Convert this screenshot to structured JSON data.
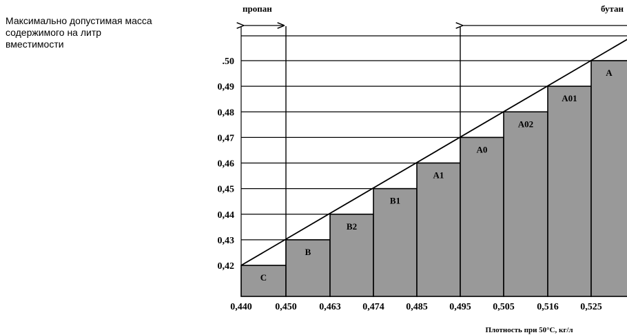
{
  "chart_data": {
    "type": "bar",
    "ylabel_lines": [
      "Максимально допустимая масса",
      "содержимого на литр",
      "вместимости"
    ],
    "xlabel": "Плотность при 50°С, кг/л",
    "x_tick_labels": [
      "0,440",
      "0,450",
      "0,463",
      "0,474",
      "0,485",
      "0,495",
      "0,505",
      "0,516",
      "0,525"
    ],
    "y_tick_labels": [
      ".50",
      "0,49",
      "0,48",
      "0,47",
      "0,46",
      "0,45",
      "0,44",
      "0,43",
      "0,42"
    ],
    "y_ticks": [
      0.5,
      0.49,
      0.48,
      0.47,
      0.46,
      0.45,
      0.44,
      0.43,
      0.42
    ],
    "ylim": [
      0.405,
      0.52
    ],
    "grid": true,
    "bars": [
      {
        "label": "C",
        "x_start": 0.44,
        "x_end": 0.45,
        "value": 0.42
      },
      {
        "label": "B",
        "x_start": 0.45,
        "x_end": 0.463,
        "value": 0.43
      },
      {
        "label": "B2",
        "x_start": 0.463,
        "x_end": 0.474,
        "value": 0.44
      },
      {
        "label": "B1",
        "x_start": 0.474,
        "x_end": 0.485,
        "value": 0.45
      },
      {
        "label": "A1",
        "x_start": 0.485,
        "x_end": 0.495,
        "value": 0.46
      },
      {
        "label": "A0",
        "x_start": 0.495,
        "x_end": 0.505,
        "value": 0.47
      },
      {
        "label": "A02",
        "x_start": 0.505,
        "x_end": 0.516,
        "value": 0.48
      },
      {
        "label": "A01",
        "x_start": 0.516,
        "x_end": 0.525,
        "value": 0.49
      },
      {
        "label": "A",
        "x_start": 0.525,
        "x_end": 0.535,
        "value": 0.5
      }
    ],
    "trend_line": {
      "from": [
        0.44,
        0.42
      ],
      "to": [
        0.535,
        0.51
      ]
    },
    "ranges": [
      {
        "label": "пропан",
        "from": 0.44,
        "to": 0.45
      },
      {
        "label": "бутан",
        "from": 0.495,
        "to": 0.535
      }
    ],
    "colors": {
      "bar_fill": "#999999",
      "line": "#000000",
      "grid": "#000000"
    }
  }
}
